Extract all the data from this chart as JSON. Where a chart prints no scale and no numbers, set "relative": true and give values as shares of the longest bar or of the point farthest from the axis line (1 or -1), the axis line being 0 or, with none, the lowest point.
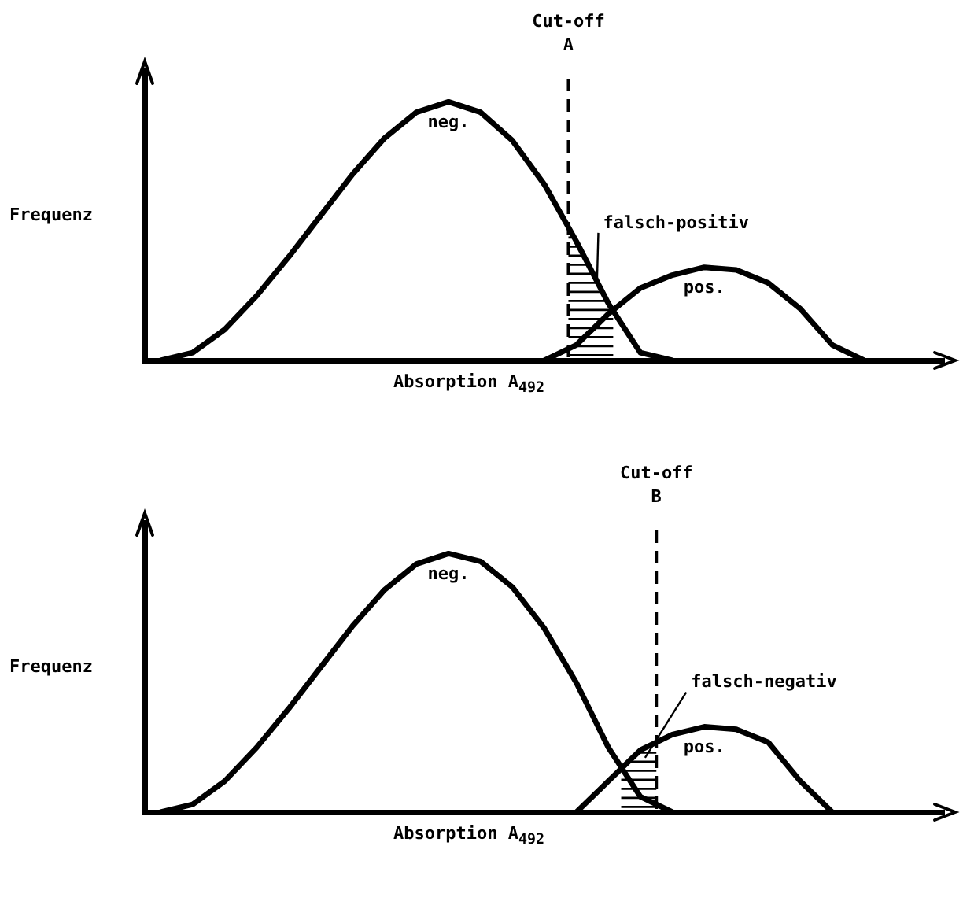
{
  "chart_data": [
    {
      "type": "line",
      "relative": true,
      "xlabel": "Absorption A$_{492}$",
      "ylabel": "Frequenz",
      "categories": [
        null,
        null,
        null,
        null,
        null,
        null,
        null,
        null,
        null,
        null,
        null,
        null,
        null,
        null,
        null,
        null,
        null,
        null,
        null,
        null,
        null,
        null,
        null,
        null,
        null
      ],
      "series": [
        {
          "name": "neg.",
          "color": "#000000",
          "values": [
            0,
            0.03,
            0.12,
            0.25,
            0.4,
            0.56,
            0.72,
            0.86,
            0.96,
            1,
            0.96,
            0.85,
            0.68,
            0.46,
            0.22,
            0.03,
            0,
            null,
            null,
            null,
            null,
            null,
            null,
            null,
            null
          ]
        },
        {
          "name": "pos.",
          "color": "#000000",
          "values": [
            null,
            null,
            null,
            null,
            null,
            null,
            null,
            null,
            null,
            null,
            null,
            null,
            0,
            0.06,
            0.18,
            0.28,
            0.33,
            0.36,
            0.35,
            0.3,
            0.2,
            0.06,
            0,
            null,
            null
          ]
        }
      ],
      "annotations": [
        "Cut-off A",
        "falsch-positiv"
      ],
      "tick_labels": false,
      "marker": "none"
    },
    {
      "type": "line",
      "relative": true,
      "xlabel": "Absorption A$_{492}$",
      "ylabel": "Frequenz",
      "categories": [
        null,
        null,
        null,
        null,
        null,
        null,
        null,
        null,
        null,
        null,
        null,
        null,
        null,
        null,
        null,
        null,
        null,
        null,
        null,
        null,
        null,
        null,
        null,
        null,
        null
      ],
      "series": [
        {
          "name": "neg.",
          "color": "#000000",
          "values": [
            0,
            0.03,
            0.12,
            0.25,
            0.4,
            0.56,
            0.72,
            0.86,
            0.96,
            1,
            0.97,
            0.87,
            0.71,
            0.5,
            0.25,
            0.06,
            0,
            null,
            null,
            null,
            null,
            null,
            null,
            null,
            null
          ]
        },
        {
          "name": "pos.",
          "color": "#000000",
          "values": [
            null,
            null,
            null,
            null,
            null,
            null,
            null,
            null,
            null,
            null,
            null,
            null,
            null,
            0,
            0.12,
            0.24,
            0.3,
            0.33,
            0.32,
            0.27,
            0.12,
            0,
            null,
            null,
            null
          ]
        }
      ],
      "annotations": [
        "Cut-off B",
        "falsch-negativ"
      ],
      "tick_labels": false,
      "marker": "none"
    }
  ]
}
